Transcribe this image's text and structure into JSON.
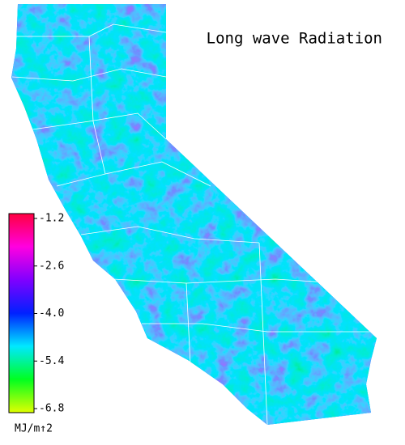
{
  "title": "Long wave Radiation",
  "colorbar": {
    "lim": [
      -6.8,
      -1.2
    ],
    "ticks": [
      -1.2,
      -2.6,
      {
        "value": -4,
        "label": "-4.0"
      },
      -5.4,
      -6.8
    ],
    "unit": "MJ/m↑2",
    "colors": [
      "#e0ff00",
      "#00ff20",
      "#00e8ff",
      "#0020ff",
      "#8000ff",
      "#ff00e0",
      "#ff0040"
    ]
  }
}
